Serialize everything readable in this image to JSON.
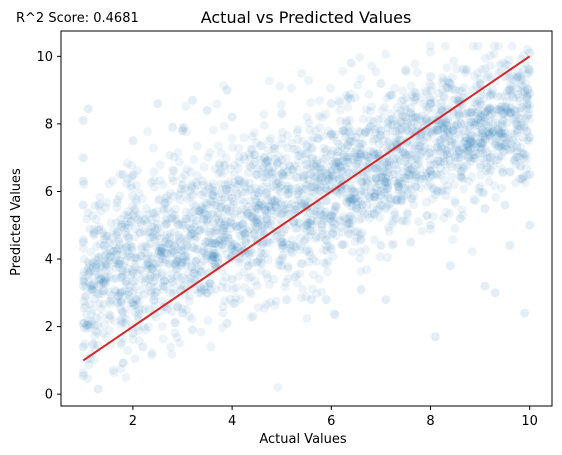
{
  "chart_data": {
    "type": "scatter",
    "title": "Actual vs Predicted Values",
    "xlabel": "Actual Values",
    "ylabel": "Predicted Values",
    "annotation": "R^2 Score: 0.4681",
    "xlim": [
      0.55,
      10.45
    ],
    "ylim": [
      -0.35,
      10.75
    ],
    "xticks": [
      2,
      4,
      6,
      8,
      10
    ],
    "yticks": [
      0,
      2,
      4,
      6,
      8,
      10
    ],
    "grid": false,
    "colors": {
      "scatter": "#1f77b4",
      "reference_line": "#d62728"
    },
    "scatter_alpha": 0.08,
    "reference_line": {
      "x": [
        1,
        10
      ],
      "y": [
        1,
        10
      ]
    },
    "points_sample": [
      [
        1,
        7.0
      ],
      [
        1,
        5.6
      ],
      [
        1,
        4.5
      ],
      [
        1,
        3.2
      ],
      [
        1,
        2.1
      ],
      [
        1,
        1.4
      ],
      [
        1,
        0.55
      ],
      [
        1,
        8.1
      ],
      [
        1,
        6.3
      ],
      [
        1.3,
        0.15
      ],
      [
        1.1,
        8.45
      ],
      [
        2,
        7.5
      ],
      [
        2,
        5.3
      ],
      [
        2,
        3.6
      ],
      [
        2,
        2.7
      ],
      [
        2,
        1.8
      ],
      [
        2.2,
        1.4
      ],
      [
        1.8,
        6.5
      ],
      [
        2.5,
        8.6
      ],
      [
        2.8,
        7.9
      ],
      [
        2.6,
        4.0
      ],
      [
        2.9,
        2.6
      ],
      [
        3,
        7.8
      ],
      [
        3,
        6.2
      ],
      [
        3,
        5.0
      ],
      [
        3,
        3.9
      ],
      [
        3,
        2.4
      ],
      [
        3.2,
        8.7
      ],
      [
        3.2,
        1.9
      ],
      [
        3.5,
        5.3
      ],
      [
        3.5,
        8.4
      ],
      [
        3.5,
        3.0
      ],
      [
        3.9,
        9.0
      ],
      [
        3.9,
        2.1
      ],
      [
        4,
        8.2
      ],
      [
        4,
        5.8
      ],
      [
        4,
        4.3
      ],
      [
        4,
        3.4
      ],
      [
        4.5,
        6.5
      ],
      [
        4.5,
        5.5
      ],
      [
        4.5,
        3.9
      ],
      [
        5,
        6.5
      ],
      [
        5,
        8.3
      ],
      [
        5,
        4.5
      ],
      [
        5,
        3.8
      ],
      [
        5.1,
        2.8
      ],
      [
        5.5,
        6.8
      ],
      [
        5.5,
        5.0
      ],
      [
        5.6,
        2.8
      ],
      [
        6,
        7.1
      ],
      [
        6,
        8.6
      ],
      [
        6,
        5.3
      ],
      [
        6,
        4.3
      ],
      [
        5.9,
        2.8
      ],
      [
        6.4,
        9.8
      ],
      [
        6.5,
        7.6
      ],
      [
        6.5,
        5.8
      ],
      [
        6.6,
        3.1
      ],
      [
        7,
        7.8
      ],
      [
        7,
        9.2
      ],
      [
        7,
        6.0
      ],
      [
        7,
        4.4
      ],
      [
        7.1,
        2.8
      ],
      [
        7.5,
        8.2
      ],
      [
        7.5,
        6.4
      ],
      [
        7.5,
        9.6
      ],
      [
        7.6,
        4.5
      ],
      [
        8,
        8.6
      ],
      [
        8,
        6.6
      ],
      [
        8,
        9.4
      ],
      [
        8,
        5.0
      ],
      [
        8.1,
        1.7
      ],
      [
        8.5,
        9.0
      ],
      [
        8.5,
        7.0
      ],
      [
        8.6,
        5.2
      ],
      [
        8.4,
        3.8
      ],
      [
        9,
        9.2
      ],
      [
        9,
        7.3
      ],
      [
        9.1,
        5.5
      ],
      [
        9.3,
        3.0
      ],
      [
        9.1,
        3.2
      ],
      [
        9.5,
        9.4
      ],
      [
        9.5,
        7.6
      ],
      [
        9.5,
        5.6
      ],
      [
        9.6,
        4.4
      ],
      [
        10,
        10.1
      ],
      [
        10,
        9.6
      ],
      [
        10,
        8.9
      ],
      [
        10,
        7.6
      ],
      [
        10,
        6.5
      ],
      [
        10,
        5.0
      ],
      [
        9.9,
        2.4
      ]
    ]
  }
}
